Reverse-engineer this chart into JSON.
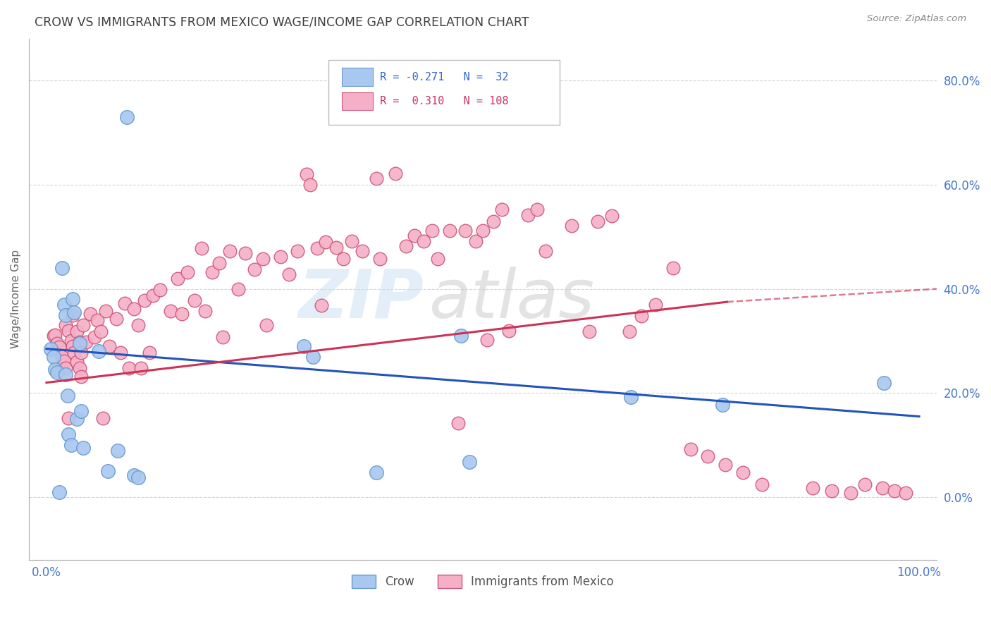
{
  "title": "CROW VS IMMIGRANTS FROM MEXICO WAGE/INCOME GAP CORRELATION CHART",
  "source": "Source: ZipAtlas.com",
  "ylabel": "Wage/Income Gap",
  "xlabel": "",
  "xlim": [
    -0.02,
    1.02
  ],
  "ylim": [
    -0.12,
    0.88
  ],
  "yticks": [
    0.0,
    0.2,
    0.4,
    0.6,
    0.8
  ],
  "ytick_labels": [
    "0.0%",
    "20.0%",
    "40.0%",
    "60.0%",
    "80.0%"
  ],
  "xticks": [
    0.0,
    0.25,
    0.5,
    0.75,
    1.0
  ],
  "xtick_labels": [
    "0.0%",
    "",
    "",
    "",
    "100.0%"
  ],
  "watermark_zip": "ZIP",
  "watermark_atlas": "atlas",
  "crow_color": "#a8c8f0",
  "crow_edge_color": "#6699cc",
  "immigrants_color": "#f5b0c8",
  "immigrants_edge_color": "#cc5577",
  "crow_line_color": "#2255bb",
  "immigrants_line_color": "#cc3355",
  "background_color": "#ffffff",
  "grid_color": "#cccccc",
  "title_color": "#404040",
  "axis_color": "#aaaaaa",
  "tick_color": "#4477cc",
  "crow_x": [
    0.005,
    0.008,
    0.01,
    0.012,
    0.015,
    0.018,
    0.02,
    0.022,
    0.022,
    0.024,
    0.025,
    0.028,
    0.03,
    0.032,
    0.035,
    0.038,
    0.04,
    0.042,
    0.06,
    0.07,
    0.082,
    0.092,
    0.1,
    0.105,
    0.295,
    0.305,
    0.378,
    0.475,
    0.485,
    0.67,
    0.775,
    0.96
  ],
  "crow_y": [
    0.285,
    0.27,
    0.245,
    0.24,
    0.01,
    0.44,
    0.37,
    0.35,
    0.235,
    0.195,
    0.12,
    0.1,
    0.38,
    0.355,
    0.15,
    0.295,
    0.165,
    0.095,
    0.28,
    0.05,
    0.09,
    0.73,
    0.042,
    0.038,
    0.29,
    0.27,
    0.048,
    0.31,
    0.068,
    0.192,
    0.178,
    0.22
  ],
  "immigrants_x": [
    0.008,
    0.01,
    0.012,
    0.015,
    0.018,
    0.02,
    0.022,
    0.025,
    0.022,
    0.025,
    0.028,
    0.03,
    0.032,
    0.035,
    0.038,
    0.04,
    0.03,
    0.035,
    0.038,
    0.04,
    0.042,
    0.045,
    0.05,
    0.055,
    0.058,
    0.062,
    0.065,
    0.068,
    0.072,
    0.08,
    0.085,
    0.09,
    0.095,
    0.1,
    0.105,
    0.108,
    0.112,
    0.118,
    0.122,
    0.13,
    0.142,
    0.15,
    0.155,
    0.162,
    0.17,
    0.178,
    0.182,
    0.19,
    0.198,
    0.202,
    0.21,
    0.22,
    0.228,
    0.238,
    0.248,
    0.252,
    0.268,
    0.278,
    0.288,
    0.298,
    0.302,
    0.31,
    0.315,
    0.32,
    0.332,
    0.34,
    0.35,
    0.362,
    0.378,
    0.382,
    0.4,
    0.412,
    0.422,
    0.432,
    0.442,
    0.448,
    0.462,
    0.472,
    0.48,
    0.492,
    0.5,
    0.505,
    0.512,
    0.522,
    0.53,
    0.552,
    0.562,
    0.572,
    0.602,
    0.622,
    0.632,
    0.648,
    0.668,
    0.682,
    0.698,
    0.718,
    0.738,
    0.758,
    0.778,
    0.798,
    0.82,
    0.878,
    0.9,
    0.922,
    0.938,
    0.958,
    0.972,
    0.985
  ],
  "immigrants_y": [
    0.31,
    0.312,
    0.295,
    0.288,
    0.27,
    0.262,
    0.248,
    0.152,
    0.33,
    0.32,
    0.3,
    0.29,
    0.278,
    0.26,
    0.248,
    0.232,
    0.35,
    0.318,
    0.298,
    0.278,
    0.33,
    0.298,
    0.352,
    0.308,
    0.34,
    0.318,
    0.152,
    0.358,
    0.29,
    0.342,
    0.278,
    0.372,
    0.248,
    0.362,
    0.33,
    0.248,
    0.378,
    0.278,
    0.388,
    0.398,
    0.358,
    0.42,
    0.352,
    0.432,
    0.378,
    0.478,
    0.358,
    0.432,
    0.45,
    0.308,
    0.472,
    0.4,
    0.468,
    0.438,
    0.458,
    0.33,
    0.462,
    0.428,
    0.472,
    0.62,
    0.6,
    0.478,
    0.368,
    0.49,
    0.48,
    0.458,
    0.492,
    0.472,
    0.612,
    0.458,
    0.622,
    0.482,
    0.502,
    0.492,
    0.512,
    0.458,
    0.512,
    0.142,
    0.512,
    0.492,
    0.512,
    0.302,
    0.53,
    0.552,
    0.32,
    0.542,
    0.552,
    0.472,
    0.522,
    0.318,
    0.53,
    0.54,
    0.318,
    0.348,
    0.37,
    0.44,
    0.092,
    0.078,
    0.062,
    0.048,
    0.025,
    0.018,
    0.012,
    0.008,
    0.025,
    0.018,
    0.012,
    0.008
  ]
}
